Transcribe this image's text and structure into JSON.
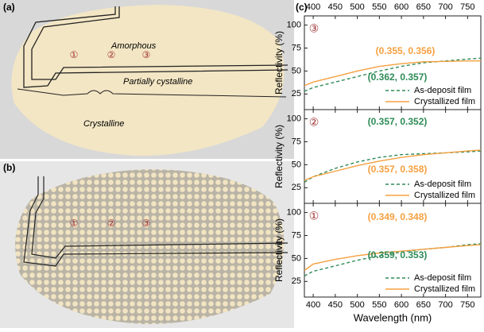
{
  "panel_labels": {
    "a": "(a)",
    "b": "(b)",
    "c": "(c)"
  },
  "photo_a": {
    "amorphous": "Amorphous",
    "partial": "Partially cystalline",
    "crystalline": "Crystalline",
    "markers": [
      "①",
      "②",
      "③"
    ]
  },
  "photo_b": {
    "markers": [
      "①",
      "②",
      "③"
    ]
  },
  "chart_data": [
    {
      "type": "line",
      "panel_label": "③",
      "x_label": "Wavelength (nm)",
      "y_label": "Reflectivity (%)",
      "x": [
        380,
        400,
        450,
        500,
        550,
        600,
        650,
        700,
        750,
        780
      ],
      "series": [
        {
          "name": "As-deposit film",
          "color": "#2e8b57",
          "dashed": true,
          "values": [
            28,
            32,
            38,
            44,
            50,
            55,
            59,
            61,
            63,
            64
          ]
        },
        {
          "name": "Crystallized film",
          "color": "#f5a040",
          "dashed": false,
          "values": [
            34,
            38,
            44,
            50,
            55,
            58,
            60,
            60.5,
            61,
            61
          ]
        }
      ],
      "annotations": [
        {
          "text": "(0.355, 0.356)",
          "color": "#f5a040"
        },
        {
          "text": "(0.362, 0.357)",
          "color": "#2e8b57"
        }
      ],
      "xlim": [
        380,
        780
      ],
      "xticks": [
        400,
        450,
        500,
        550,
        600,
        650,
        700,
        750
      ],
      "ylim": [
        8,
        110
      ],
      "yticks": [
        25,
        50,
        75,
        100
      ]
    },
    {
      "type": "line",
      "panel_label": "②",
      "x_label": "Wavelength (nm)",
      "y_label": "Reflectivity (%)",
      "x": [
        380,
        400,
        450,
        500,
        550,
        600,
        650,
        700,
        750,
        780
      ],
      "series": [
        {
          "name": "As-deposit film",
          "color": "#2e8b57",
          "dashed": true,
          "values": [
            31,
            37,
            46,
            53,
            58,
            61,
            62,
            63,
            64,
            65
          ]
        },
        {
          "name": "Crystallized film",
          "color": "#f5a040",
          "dashed": false,
          "values": [
            33,
            37,
            43,
            49,
            54,
            58,
            61,
            63,
            65,
            66
          ]
        }
      ],
      "annotations": [
        {
          "text": "(0.357, 0.352)",
          "color": "#2e8b57"
        },
        {
          "text": "(0.357, 0.358)",
          "color": "#f5a040"
        }
      ],
      "xlim": [
        380,
        780
      ],
      "xticks": [
        400,
        450,
        500,
        550,
        600,
        650,
        700,
        750
      ],
      "ylim": [
        8,
        110
      ],
      "yticks": [
        25,
        50,
        75,
        100
      ]
    },
    {
      "type": "line",
      "panel_label": "①",
      "x_label": "Wavelength (nm)",
      "y_label": "Reflectivity (%)",
      "x": [
        380,
        400,
        450,
        500,
        550,
        600,
        650,
        700,
        750,
        780
      ],
      "series": [
        {
          "name": "As-deposit film",
          "color": "#2e8b57",
          "dashed": true,
          "values": [
            31,
            36,
            42,
            48,
            53,
            57,
            60,
            62,
            65,
            66
          ]
        },
        {
          "name": "Crystallized film",
          "color": "#f5a040",
          "dashed": false,
          "values": [
            37,
            44,
            49,
            53,
            56,
            58,
            60,
            62,
            64,
            65
          ]
        }
      ],
      "annotations": [
        {
          "text": "(0.349, 0.348)",
          "color": "#f5a040"
        },
        {
          "text": "(0.359, 0.353)",
          "color": "#2e8b57"
        }
      ],
      "xlim": [
        380,
        780
      ],
      "xticks": [
        400,
        450,
        500,
        550,
        600,
        650,
        700,
        750
      ],
      "ylim": [
        8,
        110
      ],
      "yticks": [
        25,
        50,
        75,
        100
      ]
    }
  ]
}
